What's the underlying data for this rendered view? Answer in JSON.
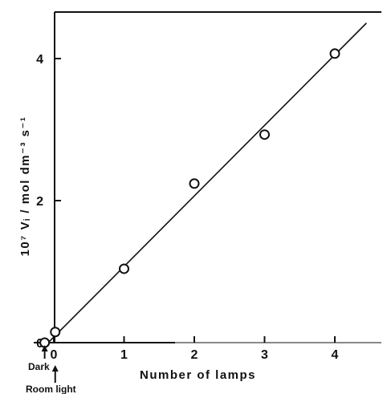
{
  "chart_data": {
    "type": "scatter",
    "xlabel": "Number of lamps",
    "ylabel": "10⁷ Vᵢ / mol dm⁻³ s⁻¹",
    "xlim": [
      -0.15,
      4.8
    ],
    "ylim": [
      0,
      4.65
    ],
    "x_ticks": [
      {
        "value": 0,
        "label": "0"
      },
      {
        "value": 1,
        "label": "1"
      },
      {
        "value": 2,
        "label": "2"
      },
      {
        "value": 3,
        "label": "3"
      },
      {
        "value": 4,
        "label": "4"
      }
    ],
    "y_ticks": [
      {
        "value": 0,
        "label": "0"
      },
      {
        "value": 2,
        "label": "2"
      },
      {
        "value": 4,
        "label": "4"
      }
    ],
    "points": [
      {
        "x": -0.13,
        "y": 0.0
      },
      {
        "x": 0.02,
        "y": 0.15
      },
      {
        "x": 1.0,
        "y": 1.04
      },
      {
        "x": 2.0,
        "y": 2.24
      },
      {
        "x": 3.0,
        "y": 2.93
      },
      {
        "x": 4.0,
        "y": 4.07
      }
    ],
    "fit_line": {
      "x": [
        -0.13,
        4.45
      ],
      "y": [
        -0.05,
        4.5
      ]
    },
    "annotations": [
      {
        "text": "Dark",
        "x": -0.13
      },
      {
        "text": "Room light",
        "x": 0.02
      }
    ],
    "grid": false,
    "legend": "none"
  }
}
